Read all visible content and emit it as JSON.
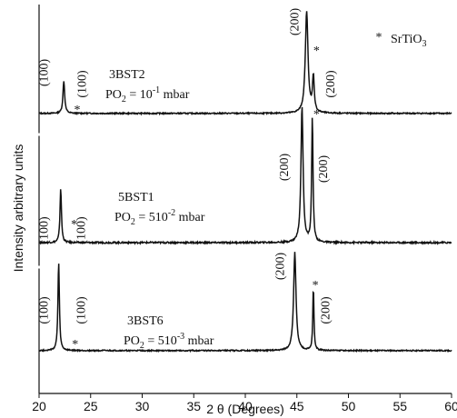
{
  "chart_data": {
    "type": "line",
    "xlabel": "2 θ (Degrees)",
    "ylabel": "Intensity arbitrary units",
    "xlim": [
      20,
      60
    ],
    "x_ticks": [
      20,
      25,
      30,
      35,
      40,
      45,
      50,
      55,
      60
    ],
    "grid": false,
    "legend": {
      "marker": "*",
      "label_main": "SrTiO",
      "label_sub": "3",
      "position": "top-right"
    },
    "series": [
      {
        "sample": "3BST2",
        "po2_prefix": "PO",
        "po2_sub": "2",
        "po2_eq": " = 10",
        "po2_sup": "-1",
        "po2_unit": " mbar",
        "baseline": 0.08,
        "peaks": [
          {
            "x": 22.4,
            "height": 0.32,
            "width": 0.18
          },
          {
            "x": 45.95,
            "height": 1.0,
            "width": 0.28
          },
          {
            "x": 46.6,
            "height": 0.35,
            "width": 0.18
          }
        ],
        "annotations": [
          {
            "text": "(100)",
            "x": 20.4
          },
          {
            "text": "(100)",
            "x": 24.1
          },
          {
            "text": "(200)",
            "x": 44.7
          },
          {
            "text": "(200)",
            "x": 48.2
          }
        ],
        "markers": [
          {
            "x": 23.7
          },
          {
            "x": 46.9
          }
        ]
      },
      {
        "sample": "5BST1",
        "po2_prefix": "PO",
        "po2_sub": "2",
        "po2_eq": " = 510",
        "po2_sup": "-2",
        "po2_unit": " mbar",
        "baseline": 0.08,
        "peaks": [
          {
            "x": 22.1,
            "height": 0.4,
            "width": 0.15
          },
          {
            "x": 45.5,
            "height": 1.0,
            "width": 0.22
          },
          {
            "x": 46.5,
            "height": 0.92,
            "width": 0.14
          }
        ],
        "annotations": [
          {
            "text": "(100)",
            "x": 20.4
          },
          {
            "text": "(100)",
            "x": 24.0
          },
          {
            "text": "(200)",
            "x": 43.7
          },
          {
            "text": "(200)",
            "x": 47.5
          }
        ],
        "markers": [
          {
            "x": 23.4
          },
          {
            "x": 46.9
          }
        ]
      },
      {
        "sample": "3BST6",
        "po2_prefix": "PO",
        "po2_sub": "2",
        "po2_eq": " = 510",
        "po2_sup": "-3",
        "po2_unit": " mbar",
        "baseline": 0.08,
        "peaks": [
          {
            "x": 21.9,
            "height": 0.9,
            "width": 0.15
          },
          {
            "x": 44.8,
            "height": 1.0,
            "width": 0.25
          },
          {
            "x": 46.6,
            "height": 0.65,
            "width": 0.12
          }
        ],
        "annotations": [
          {
            "text": "(100)",
            "x": 20.4
          },
          {
            "text": "(100)",
            "x": 24.0
          },
          {
            "text": "(200)",
            "x": 43.3
          },
          {
            "text": "(200)",
            "x": 47.7
          }
        ],
        "markers": [
          {
            "x": 23.5
          },
          {
            "x": 46.8
          }
        ]
      }
    ]
  }
}
